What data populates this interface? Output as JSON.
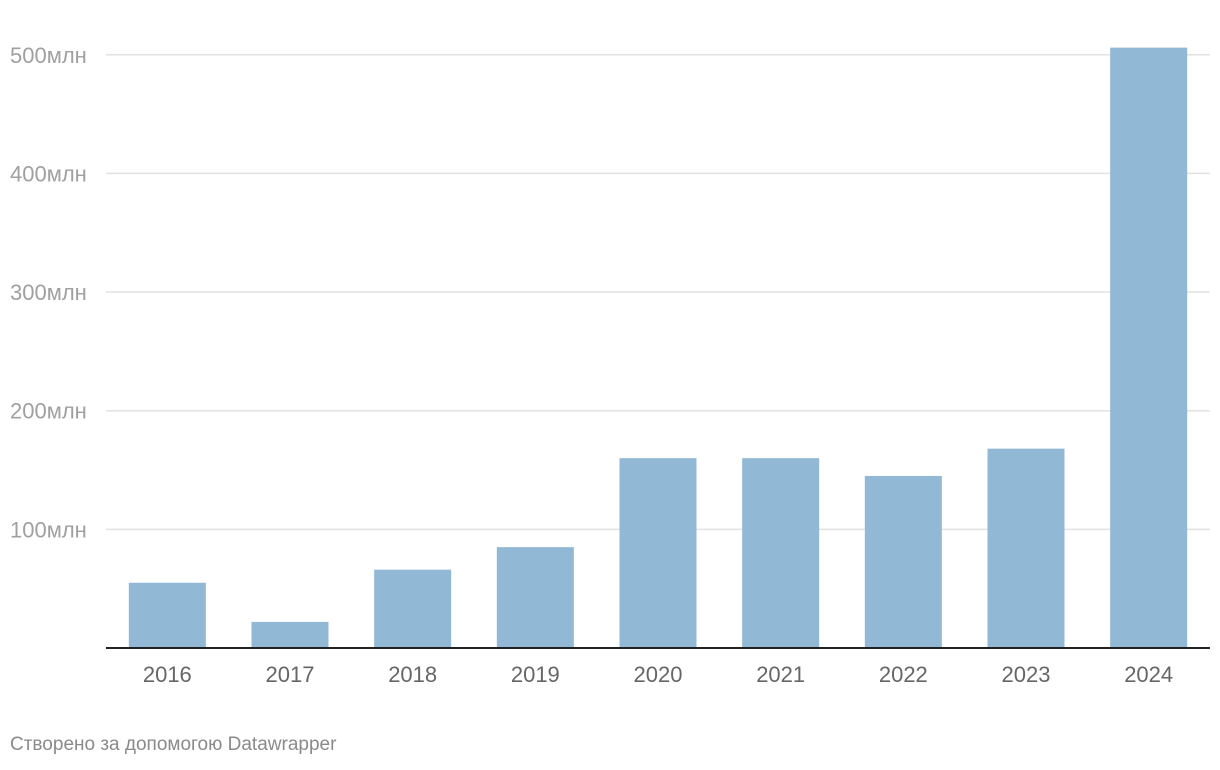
{
  "chart_data": {
    "type": "bar",
    "categories": [
      "2016",
      "2017",
      "2018",
      "2019",
      "2020",
      "2021",
      "2022",
      "2023",
      "2024"
    ],
    "values": [
      55,
      22,
      66,
      85,
      160,
      160,
      145,
      168,
      506
    ],
    "ylim": [
      0,
      500
    ],
    "yticks": [
      100,
      200,
      300,
      400,
      500
    ],
    "ytick_labels": [
      "100млн",
      "200млн",
      "300млн",
      "400млн",
      "500млн"
    ],
    "grid": true,
    "colors": {
      "bar": "#91b8d5",
      "grid": "#e2e2e2",
      "axis": "#222222",
      "tick_label": "#a0a0a0",
      "category_label": "#666666"
    }
  },
  "footer": {
    "credit": "Створено за допомогою Datawrapper"
  }
}
